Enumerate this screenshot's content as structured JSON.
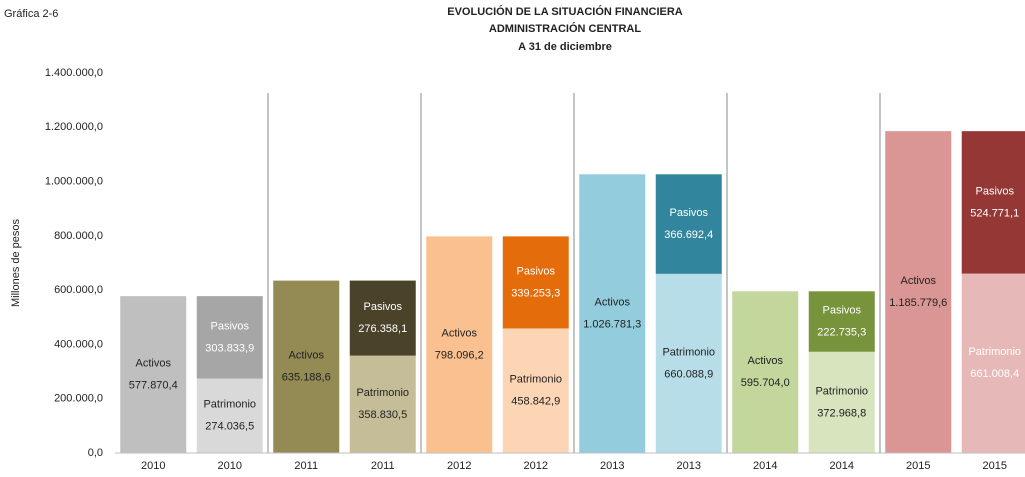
{
  "chart_data": {
    "type": "bar",
    "figure_label": "Gráfica 2-6",
    "title": [
      "EVOLUCIÓN DE LA SITUACIÓN  FINANCIERA",
      "ADMINISTRACIÓN  CENTRAL",
      "A 31 de diciembre"
    ],
    "ylabel": "Millones de pesos",
    "categories": [
      "2010",
      "2010",
      "2011",
      "2011",
      "2012",
      "2012",
      "2013",
      "2013",
      "2014",
      "2014",
      "2015",
      "2015"
    ],
    "series": [
      {
        "name": "Activos",
        "values": [
          577870.4,
          null,
          635188.6,
          null,
          798096.2,
          null,
          1026781.3,
          null,
          595704.0,
          null,
          1185779.6,
          null
        ],
        "value_labels": [
          "577.870,4",
          null,
          "635.188,6",
          null,
          "798.096,2",
          null,
          "1.026.781,3",
          null,
          "595.704,0",
          null,
          "1.185.779,6",
          null
        ],
        "colors": [
          "#bfbfbf",
          null,
          "#948a54",
          null,
          "#fac090",
          null,
          "#93cddd",
          null,
          "#c3d69b",
          null,
          "#d99694",
          null
        ],
        "label_colors": [
          "#222",
          null,
          "#222",
          null,
          "#222",
          null,
          "#222",
          null,
          "#222",
          null,
          "#222",
          null
        ]
      },
      {
        "name": "Patrimonio",
        "values": [
          null,
          274036.5,
          null,
          358830.5,
          null,
          458842.9,
          null,
          660088.9,
          null,
          372968.8,
          null,
          661008.4
        ],
        "value_labels": [
          null,
          "274.036,5",
          null,
          "358.830,5",
          null,
          "458.842,9",
          null,
          "660.088,9",
          null,
          "372.968,8",
          null,
          "661.008,4"
        ],
        "colors": [
          null,
          "#d9d9d9",
          null,
          "#c4bd97",
          null,
          "#fcd5b5",
          null,
          "#b7dee8",
          null,
          "#d7e4bd",
          null,
          "#e6b9b8"
        ],
        "label_colors": [
          null,
          "#222",
          null,
          "#222",
          null,
          "#222",
          null,
          "#222",
          null,
          "#222",
          null,
          "#fff"
        ]
      },
      {
        "name": "Pasivos",
        "values": [
          null,
          303833.9,
          null,
          276358.1,
          null,
          339253.3,
          null,
          366692.4,
          null,
          222735.3,
          null,
          524771.1
        ],
        "value_labels": [
          null,
          "303.833,9",
          null,
          "276.358,1",
          null,
          "339.253,3",
          null,
          "366.692,4",
          null,
          "222.735,3",
          null,
          "524.771,1"
        ],
        "colors": [
          null,
          "#a6a6a6",
          null,
          "#4a4229",
          null,
          "#e46c0a",
          null,
          "#31859c",
          null,
          "#77933c",
          null,
          "#953735"
        ],
        "label_colors": [
          null,
          "#fff",
          null,
          "#fff",
          null,
          "#fff",
          null,
          "#fff",
          null,
          "#fff",
          null,
          "#fff"
        ]
      }
    ],
    "ylim": [
      0,
      1400000
    ],
    "yticks": [
      {
        "value": 0,
        "label": "0,0"
      },
      {
        "value": 200000,
        "label": "200.000,0"
      },
      {
        "value": 400000,
        "label": "400.000,0"
      },
      {
        "value": 600000,
        "label": "600.000,0"
      },
      {
        "value": 800000,
        "label": "800.000,0"
      },
      {
        "value": 1000000,
        "label": "1.000.000,0"
      },
      {
        "value": 1200000,
        "label": "1.200.000,0"
      },
      {
        "value": 1400000,
        "label": "1.400.000,0"
      }
    ],
    "grid": false
  }
}
